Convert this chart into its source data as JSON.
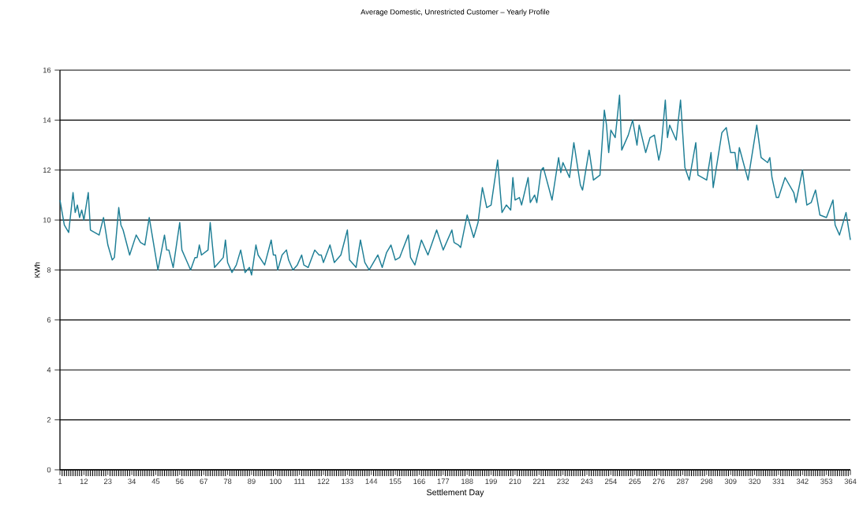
{
  "chart_data": {
    "type": "line",
    "title": "Average Domestic, Unrestricted Customer – Yearly Profile",
    "xlabel": "Settlement Day",
    "ylabel": "KWh",
    "color": "#1f7f96",
    "grid": "y",
    "xlim": [
      1,
      364
    ],
    "ylim": [
      0,
      16
    ],
    "xticks": [
      1,
      12,
      23,
      34,
      45,
      56,
      67,
      78,
      89,
      100,
      111,
      122,
      133,
      144,
      155,
      166,
      177,
      188,
      199,
      210,
      221,
      232,
      243,
      254,
      265,
      276,
      287,
      298,
      309,
      320,
      331,
      342,
      353,
      364
    ],
    "yticks": [
      0,
      2,
      4,
      6,
      8,
      10,
      12,
      14,
      16
    ],
    "x": [
      1,
      3,
      5,
      7,
      8,
      9,
      10,
      11,
      12,
      14,
      15,
      17,
      19,
      21,
      23,
      25,
      26,
      28,
      29,
      30,
      33,
      36,
      38,
      40,
      42,
      46,
      49,
      50,
      51,
      53,
      56,
      57,
      59,
      61,
      63,
      64,
      65,
      66,
      69,
      70,
      72,
      74,
      76,
      77,
      78,
      80,
      82,
      84,
      86,
      88,
      89,
      91,
      92,
      95,
      98,
      99,
      100,
      101,
      103,
      105,
      106,
      108,
      110,
      112,
      113,
      115,
      118,
      120,
      121,
      122,
      125,
      127,
      130,
      133,
      134,
      137,
      139,
      141,
      143,
      147,
      149,
      151,
      153,
      155,
      157,
      161,
      162,
      164,
      167,
      170,
      174,
      177,
      181,
      182,
      184,
      185,
      188,
      191,
      193,
      195,
      197,
      199,
      202,
      204,
      206,
      208,
      209,
      210,
      212,
      213,
      216,
      217,
      219,
      220,
      222,
      223,
      227,
      230,
      231,
      232,
      235,
      237,
      240,
      241,
      244,
      246,
      249,
      251,
      252,
      253,
      254,
      256,
      258,
      259,
      262,
      264,
      266,
      267,
      270,
      272,
      274,
      276,
      277,
      279,
      280,
      281,
      284,
      286,
      288,
      290,
      293,
      294,
      298,
      300,
      301,
      305,
      307,
      309,
      311,
      312,
      313,
      317,
      321,
      323,
      326,
      327,
      328,
      330,
      331,
      334,
      338,
      339,
      342,
      344,
      346,
      348,
      350,
      353,
      356,
      357,
      359,
      362,
      364
    ],
    "values": [
      10.8,
      9.8,
      9.5,
      11.1,
      10.3,
      10.6,
      10.1,
      10.4,
      10.0,
      11.1,
      9.6,
      9.5,
      9.4,
      10.1,
      9.0,
      8.4,
      8.5,
      10.5,
      9.8,
      9.6,
      8.6,
      9.4,
      9.1,
      9.0,
      10.1,
      8.0,
      9.4,
      8.8,
      8.8,
      8.1,
      9.9,
      8.8,
      8.4,
      8.0,
      8.5,
      8.5,
      9.0,
      8.6,
      8.8,
      9.9,
      8.1,
      8.3,
      8.5,
      9.2,
      8.3,
      7.9,
      8.2,
      8.8,
      7.9,
      8.1,
      7.8,
      9.0,
      8.6,
      8.2,
      9.2,
      8.6,
      8.6,
      8.0,
      8.6,
      8.8,
      8.4,
      8.0,
      8.2,
      8.6,
      8.2,
      8.1,
      8.8,
      8.6,
      8.6,
      8.3,
      9.0,
      8.3,
      8.6,
      9.6,
      8.4,
      8.1,
      9.2,
      8.3,
      8.0,
      8.6,
      8.1,
      8.7,
      9.0,
      8.4,
      8.5,
      9.4,
      8.5,
      8.2,
      9.2,
      8.6,
      9.6,
      8.8,
      9.6,
      9.1,
      9.0,
      8.9,
      10.2,
      9.3,
      9.9,
      11.3,
      10.5,
      10.6,
      12.4,
      10.3,
      10.6,
      10.4,
      11.7,
      10.8,
      10.9,
      10.6,
      11.7,
      10.7,
      11.0,
      10.7,
      12.0,
      12.1,
      10.8,
      12.5,
      11.9,
      12.3,
      11.7,
      13.1,
      11.4,
      11.2,
      12.8,
      11.6,
      11.8,
      14.4,
      13.8,
      12.7,
      13.6,
      13.3,
      15.0,
      12.8,
      13.4,
      14.0,
      13.0,
      13.8,
      12.7,
      13.3,
      13.4,
      12.4,
      12.8,
      14.8,
      13.3,
      13.8,
      13.2,
      14.8,
      12.1,
      11.6,
      13.1,
      11.8,
      11.6,
      12.7,
      11.3,
      13.5,
      13.7,
      12.7,
      12.7,
      12.0,
      12.9,
      11.6,
      13.8,
      12.5,
      12.3,
      12.5,
      11.7,
      10.9,
      10.9,
      11.7,
      11.1,
      10.7,
      12.0,
      10.6,
      10.7,
      11.2,
      10.2,
      10.1,
      10.8,
      9.8,
      9.4,
      10.3,
      9.2
    ]
  }
}
